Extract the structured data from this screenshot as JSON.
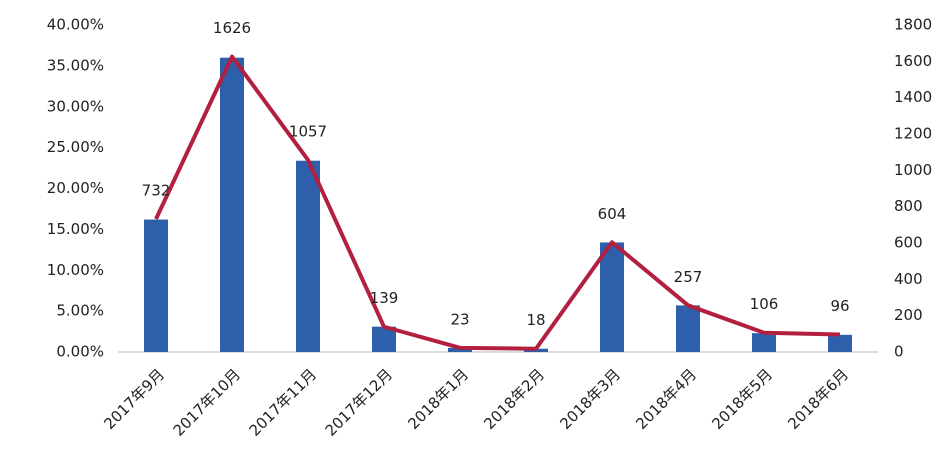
{
  "chart_data": {
    "type": "bar",
    "categories": [
      "2017年9月",
      "2017年10月",
      "2017年11月",
      "2017年12月",
      "2018年1月",
      "2018年2月",
      "2018年3月",
      "2018年4月",
      "2018年5月",
      "2018年6月"
    ],
    "series": [
      {
        "type": "bar",
        "color": "#2e5faa",
        "values": [
          16.2,
          36.0,
          23.4,
          3.1,
          0.5,
          0.4,
          13.4,
          5.7,
          2.3,
          2.1
        ]
      },
      {
        "type": "line",
        "axis": "y2",
        "color": "#b3203f",
        "values": [
          732,
          1626,
          1057,
          139,
          23,
          18,
          604,
          257,
          106,
          96
        ]
      }
    ],
    "ylim": [
      0,
      40
    ],
    "yticks": [
      {
        "value": 0,
        "label": "0.00%"
      },
      {
        "value": 5,
        "label": "5.00%"
      },
      {
        "value": 10,
        "label": "10.00%"
      },
      {
        "value": 15,
        "label": "15.00%"
      },
      {
        "value": 20,
        "label": "20.00%"
      },
      {
        "value": 25,
        "label": "25.00%"
      },
      {
        "value": 30,
        "label": "30.00%"
      },
      {
        "value": 35,
        "label": "35.00%"
      },
      {
        "value": 40,
        "label": "40.00%"
      }
    ],
    "y2lim": [
      0,
      1800
    ],
    "y2ticks": [
      0,
      200,
      400,
      600,
      800,
      1000,
      1200,
      1400,
      1600,
      1800
    ],
    "grid": false
  }
}
